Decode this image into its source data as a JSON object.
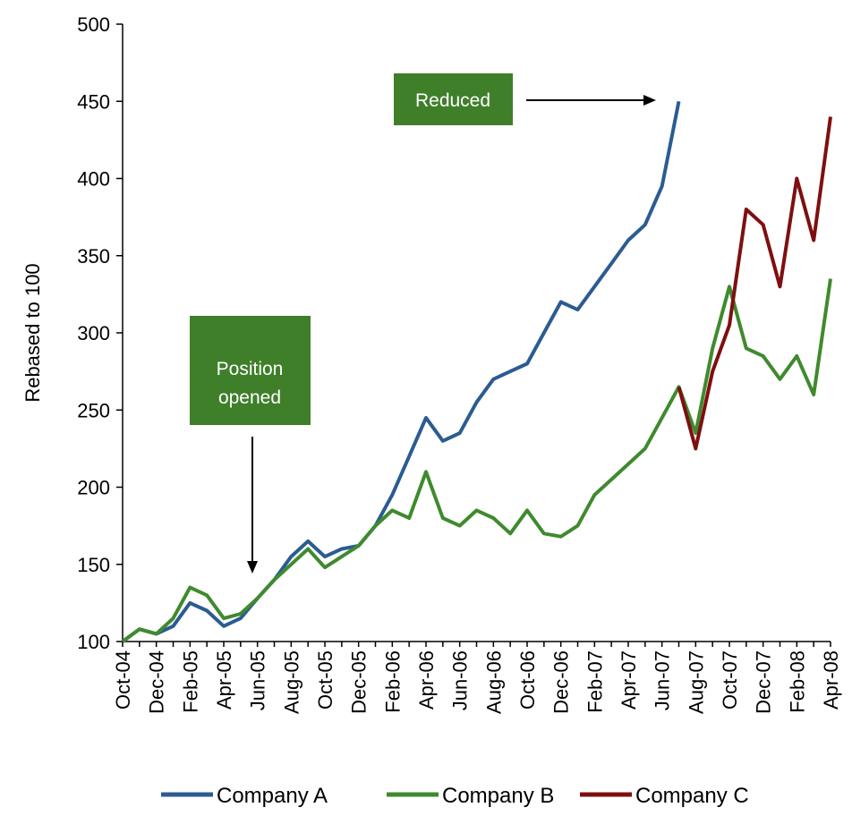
{
  "chart_data": {
    "type": "line",
    "y_label": "Rebased to 100",
    "categories": [
      "Oct-04",
      null,
      "Dec-04",
      null,
      "Feb-05",
      null,
      "Apr-05",
      null,
      "Jun-05",
      null,
      "Aug-05",
      null,
      "Oct-05",
      null,
      "Dec-05",
      null,
      "Feb-06",
      null,
      "Apr-06",
      null,
      "Jun-06",
      null,
      "Aug-06",
      null,
      "Oct-06",
      null,
      "Dec-06",
      null,
      "Feb-07",
      null,
      "Apr-07",
      null,
      "Jun-07",
      null,
      "Aug-07",
      null,
      "Oct-07",
      null,
      "Dec-07",
      null,
      "Feb-08",
      null,
      "Apr-08"
    ],
    "series": [
      {
        "name": "Company A",
        "color": "#2b5c91",
        "values": [
          100,
          108,
          105,
          110,
          125,
          120,
          110,
          115,
          128,
          140,
          155,
          165,
          155,
          160,
          162,
          175,
          195,
          220,
          245,
          230,
          235,
          255,
          270,
          275,
          280,
          300,
          320,
          315,
          330,
          345,
          360,
          370,
          395,
          450,
          null,
          null,
          null,
          null,
          null,
          null,
          null,
          null,
          null
        ]
      },
      {
        "name": "Company B",
        "color": "#3f8a2e",
        "values": [
          100,
          108,
          105,
          115,
          135,
          130,
          115,
          118,
          128,
          140,
          150,
          160,
          148,
          155,
          162,
          175,
          185,
          180,
          210,
          180,
          175,
          185,
          180,
          170,
          185,
          170,
          168,
          175,
          195,
          205,
          215,
          225,
          245,
          265,
          235,
          290,
          330,
          290,
          285,
          270,
          285,
          260,
          335
        ]
      },
      {
        "name": "Company C",
        "color": "#7f0f0f",
        "values": [
          null,
          null,
          null,
          null,
          null,
          null,
          null,
          null,
          null,
          null,
          null,
          null,
          null,
          null,
          null,
          null,
          null,
          null,
          null,
          null,
          null,
          null,
          null,
          null,
          null,
          null,
          null,
          null,
          null,
          null,
          null,
          null,
          null,
          265,
          225,
          275,
          305,
          380,
          370,
          330,
          400,
          360,
          440
        ]
      }
    ],
    "ylim": [
      100,
      500
    ],
    "yticks": [
      100,
      150,
      200,
      250,
      300,
      350,
      400,
      450,
      500
    ],
    "annotations": [
      "Reduced",
      "Position",
      "opened"
    ],
    "legend": "bottom"
  }
}
